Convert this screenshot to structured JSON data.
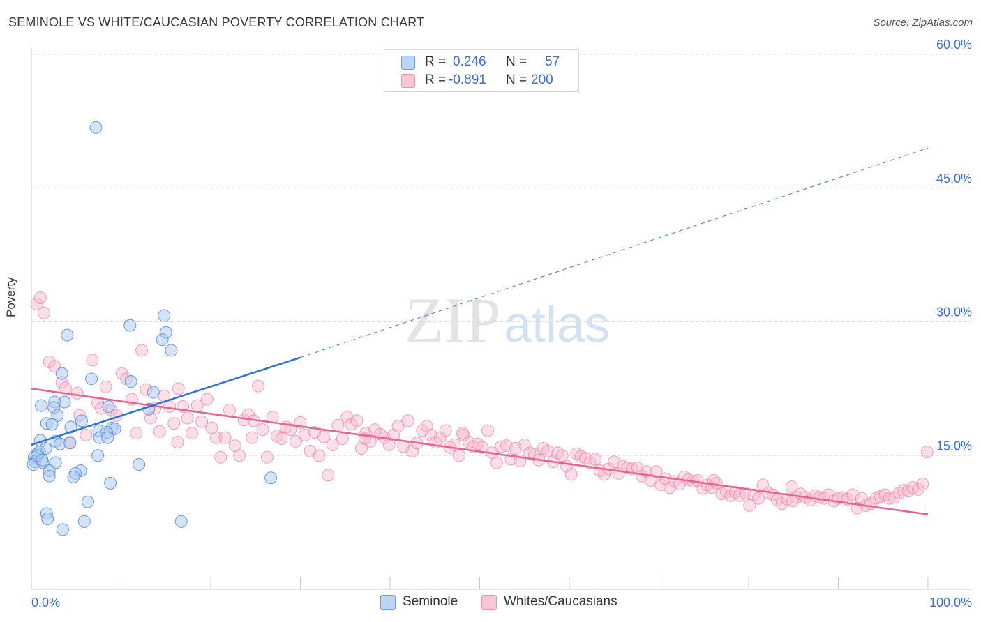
{
  "header": {
    "title": "SEMINOLE VS WHITE/CAUCASIAN POVERTY CORRELATION CHART",
    "source": "Source: ZipAtlas.com"
  },
  "watermark": {
    "zip": "ZIP",
    "atlas": "atlas"
  },
  "legend": {
    "rows": [
      {
        "r_label": "R =",
        "r_value": "0.246",
        "n_label": "N =",
        "n_value": "57"
      },
      {
        "r_label": "R =",
        "r_value": "-0.891",
        "n_label": "N =",
        "n_value": "200"
      }
    ]
  },
  "colors": {
    "seminole_fill": "#a9c8f0",
    "seminole_stroke": "#5b8fdc",
    "seminole_line": "#2c6fd6",
    "white_fill": "#f7b8cb",
    "white_stroke": "#ef8aa8",
    "white_line": "#e8628d",
    "tick_label": "#3a6fd0",
    "grid": "#d9d9d9"
  },
  "chart_data": {
    "type": "scatter",
    "title": "SEMINOLE VS WHITE/CAUCASIAN POVERTY CORRELATION CHART",
    "xlabel": "",
    "ylabel": "Poverty",
    "xlim": [
      0,
      100
    ],
    "ylim": [
      0,
      60
    ],
    "x_tick_labels": [
      "0.0%",
      "100.0%"
    ],
    "y_ticks": [
      15,
      30,
      45,
      60
    ],
    "y_tick_labels": [
      "15.0%",
      "30.0%",
      "45.0%",
      "60.0%"
    ],
    "grid": true,
    "legend_position": "top-center",
    "series": [
      {
        "name": "Seminole",
        "r": 0.246,
        "n": 57,
        "trend_solid": [
          [
            0,
            16.2
          ],
          [
            30,
            26.0
          ]
        ],
        "trend_dashed": [
          [
            30,
            26.0
          ],
          [
            100,
            49.5
          ]
        ],
        "points": [
          [
            7.2,
            51.8
          ],
          [
            4.0,
            28.5
          ],
          [
            11.0,
            29.6
          ],
          [
            14.8,
            30.7
          ],
          [
            15.0,
            28.8
          ],
          [
            14.6,
            28.0
          ],
          [
            15.6,
            26.8
          ],
          [
            3.4,
            24.2
          ],
          [
            6.7,
            23.6
          ],
          [
            11.1,
            23.3
          ],
          [
            13.6,
            22.1
          ],
          [
            3.7,
            21.0
          ],
          [
            2.6,
            21.0
          ],
          [
            1.1,
            20.6
          ],
          [
            2.5,
            20.4
          ],
          [
            8.6,
            20.5
          ],
          [
            13.1,
            20.2
          ],
          [
            2.9,
            19.5
          ],
          [
            5.6,
            18.9
          ],
          [
            1.7,
            18.6
          ],
          [
            2.3,
            18.5
          ],
          [
            4.4,
            18.2
          ],
          [
            9.0,
            18.1
          ],
          [
            9.3,
            18.0
          ],
          [
            7.5,
            17.8
          ],
          [
            8.4,
            17.6
          ],
          [
            7.6,
            17.0
          ],
          [
            8.5,
            17.0
          ],
          [
            1.0,
            16.7
          ],
          [
            2.7,
            16.6
          ],
          [
            3.2,
            16.3
          ],
          [
            4.3,
            16.4
          ],
          [
            1.6,
            15.8
          ],
          [
            0.9,
            15.4
          ],
          [
            0.7,
            15.2
          ],
          [
            0.3,
            14.8
          ],
          [
            7.4,
            15.0
          ],
          [
            0.4,
            14.3
          ],
          [
            0.2,
            14.0
          ],
          [
            1.3,
            14.2
          ],
          [
            2.7,
            14.2
          ],
          [
            12.0,
            14.0
          ],
          [
            2.0,
            13.3
          ],
          [
            5.5,
            13.3
          ],
          [
            4.9,
            13.0
          ],
          [
            2.0,
            12.7
          ],
          [
            4.7,
            12.6
          ],
          [
            26.7,
            12.5
          ],
          [
            8.8,
            11.9
          ],
          [
            6.3,
            9.8
          ],
          [
            1.7,
            8.5
          ],
          [
            1.8,
            7.9
          ],
          [
            5.9,
            7.6
          ],
          [
            16.7,
            7.6
          ],
          [
            3.5,
            6.7
          ],
          [
            0.6,
            15.0
          ],
          [
            1.2,
            14.5
          ]
        ]
      },
      {
        "name": "Whites/Caucasians",
        "r": -0.891,
        "n": 200,
        "trend": [
          [
            0,
            22.5
          ],
          [
            100,
            8.4
          ]
        ],
        "points": [
          [
            0.6,
            32.0
          ],
          [
            1.0,
            32.7
          ],
          [
            1.4,
            31.0
          ],
          [
            2.0,
            25.5
          ],
          [
            2.6,
            25.0
          ],
          [
            3.4,
            23.2
          ],
          [
            3.8,
            22.6
          ],
          [
            4.3,
            16.5
          ],
          [
            5.1,
            22.0
          ],
          [
            5.4,
            19.5
          ],
          [
            6.1,
            17.3
          ],
          [
            6.8,
            25.7
          ],
          [
            7.4,
            20.9
          ],
          [
            7.8,
            20.3
          ],
          [
            8.3,
            22.7
          ],
          [
            8.9,
            20.1
          ],
          [
            9.5,
            19.5
          ],
          [
            10.1,
            24.2
          ],
          [
            10.6,
            23.6
          ],
          [
            11.2,
            21.3
          ],
          [
            11.7,
            17.5
          ],
          [
            12.3,
            26.8
          ],
          [
            12.8,
            22.4
          ],
          [
            13.3,
            19.2
          ],
          [
            13.8,
            20.3
          ],
          [
            14.3,
            17.7
          ],
          [
            14.8,
            21.7
          ],
          [
            15.4,
            20.5
          ],
          [
            15.9,
            18.6
          ],
          [
            16.4,
            22.5
          ],
          [
            16.9,
            20.5
          ],
          [
            17.4,
            19.2
          ],
          [
            17.9,
            17.5
          ],
          [
            18.5,
            20.6
          ],
          [
            19.0,
            18.8
          ],
          [
            19.6,
            21.3
          ],
          [
            20.1,
            18.1
          ],
          [
            20.6,
            17.0
          ],
          [
            21.1,
            14.8
          ],
          [
            21.6,
            17.0
          ],
          [
            22.1,
            20.1
          ],
          [
            22.7,
            16.1
          ],
          [
            23.2,
            15.0
          ],
          [
            23.7,
            19.0
          ],
          [
            24.2,
            19.6
          ],
          [
            24.8,
            18.9
          ],
          [
            25.3,
            22.8
          ],
          [
            25.8,
            17.9
          ],
          [
            26.3,
            14.8
          ],
          [
            26.9,
            19.3
          ],
          [
            27.4,
            17.2
          ],
          [
            27.9,
            16.9
          ],
          [
            28.4,
            18.2
          ],
          [
            28.9,
            17.9
          ],
          [
            29.5,
            16.6
          ],
          [
            30.0,
            18.7
          ],
          [
            30.5,
            17.3
          ],
          [
            31.1,
            15.5
          ],
          [
            31.6,
            17.6
          ],
          [
            32.1,
            15.0
          ],
          [
            32.6,
            17.1
          ],
          [
            33.1,
            12.8
          ],
          [
            33.6,
            16.2
          ],
          [
            34.2,
            18.4
          ],
          [
            34.7,
            16.9
          ],
          [
            35.2,
            19.3
          ],
          [
            35.7,
            18.5
          ],
          [
            36.3,
            18.9
          ],
          [
            36.8,
            15.8
          ],
          [
            37.3,
            17.5
          ],
          [
            37.8,
            16.6
          ],
          [
            38.3,
            17.9
          ],
          [
            38.9,
            17.4
          ],
          [
            39.4,
            17.0
          ],
          [
            39.9,
            16.2
          ],
          [
            40.4,
            17.3
          ],
          [
            40.9,
            18.3
          ],
          [
            41.5,
            16.0
          ],
          [
            42.0,
            18.9
          ],
          [
            42.5,
            15.5
          ],
          [
            43.0,
            16.4
          ],
          [
            43.6,
            17.8
          ],
          [
            44.1,
            18.3
          ],
          [
            44.6,
            17.3
          ],
          [
            45.1,
            16.5
          ],
          [
            45.6,
            17.0
          ],
          [
            46.2,
            17.8
          ],
          [
            46.7,
            15.9
          ],
          [
            47.2,
            16.2
          ],
          [
            47.7,
            15.0
          ],
          [
            48.2,
            17.3
          ],
          [
            48.8,
            16.5
          ],
          [
            49.3,
            16.0
          ],
          [
            49.8,
            16.3
          ],
          [
            50.3,
            15.9
          ],
          [
            50.9,
            17.8
          ],
          [
            51.4,
            15.3
          ],
          [
            51.9,
            14.2
          ],
          [
            52.4,
            16.0
          ],
          [
            53.0,
            16.1
          ],
          [
            53.5,
            14.6
          ],
          [
            54.0,
            15.8
          ],
          [
            54.5,
            14.4
          ],
          [
            55.0,
            16.2
          ],
          [
            55.6,
            15.3
          ],
          [
            56.1,
            15.1
          ],
          [
            56.6,
            14.5
          ],
          [
            57.1,
            15.8
          ],
          [
            57.6,
            15.5
          ],
          [
            58.2,
            14.3
          ],
          [
            58.7,
            15.3
          ],
          [
            59.2,
            15.0
          ],
          [
            59.7,
            13.8
          ],
          [
            60.2,
            12.9
          ],
          [
            60.8,
            15.2
          ],
          [
            61.3,
            14.9
          ],
          [
            61.8,
            14.7
          ],
          [
            62.3,
            14.2
          ],
          [
            62.9,
            14.6
          ],
          [
            63.4,
            13.3
          ],
          [
            63.9,
            12.9
          ],
          [
            64.4,
            13.5
          ],
          [
            65.0,
            14.3
          ],
          [
            65.5,
            13.0
          ],
          [
            66.0,
            13.8
          ],
          [
            66.5,
            13.6
          ],
          [
            67.0,
            13.5
          ],
          [
            67.6,
            13.6
          ],
          [
            68.1,
            12.7
          ],
          [
            68.6,
            13.2
          ],
          [
            69.1,
            12.2
          ],
          [
            69.7,
            13.2
          ],
          [
            70.2,
            11.7
          ],
          [
            70.7,
            12.4
          ],
          [
            71.2,
            11.4
          ],
          [
            71.7,
            12.1
          ],
          [
            72.3,
            11.8
          ],
          [
            72.8,
            12.6
          ],
          [
            73.3,
            12.3
          ],
          [
            73.8,
            12.1
          ],
          [
            74.3,
            12.2
          ],
          [
            74.9,
            11.3
          ],
          [
            75.4,
            11.7
          ],
          [
            75.9,
            11.4
          ],
          [
            76.4,
            11.9
          ],
          [
            77.0,
            10.7
          ],
          [
            77.5,
            10.9
          ],
          [
            78.0,
            10.5
          ],
          [
            78.5,
            10.9
          ],
          [
            79.0,
            10.5
          ],
          [
            79.6,
            10.8
          ],
          [
            80.1,
            9.4
          ],
          [
            80.6,
            10.6
          ],
          [
            81.1,
            10.2
          ],
          [
            81.6,
            11.7
          ],
          [
            82.2,
            10.8
          ],
          [
            82.7,
            10.6
          ],
          [
            83.2,
            10.0
          ],
          [
            83.7,
            9.6
          ],
          [
            84.3,
            10.1
          ],
          [
            84.8,
            11.5
          ],
          [
            85.3,
            10.3
          ],
          [
            85.8,
            10.7
          ],
          [
            86.3,
            10.3
          ],
          [
            86.9,
            10.0
          ],
          [
            87.4,
            10.5
          ],
          [
            87.9,
            10.3
          ],
          [
            88.4,
            10.2
          ],
          [
            88.9,
            10.6
          ],
          [
            89.5,
            9.9
          ],
          [
            90.0,
            10.2
          ],
          [
            90.5,
            10.3
          ],
          [
            91.0,
            10.1
          ],
          [
            91.6,
            10.6
          ],
          [
            92.1,
            9.1
          ],
          [
            92.6,
            10.2
          ],
          [
            93.1,
            9.4
          ],
          [
            93.6,
            9.6
          ],
          [
            94.2,
            10.2
          ],
          [
            94.7,
            10.4
          ],
          [
            95.2,
            10.6
          ],
          [
            95.7,
            10.2
          ],
          [
            96.2,
            10.3
          ],
          [
            96.8,
            10.8
          ],
          [
            97.3,
            11.1
          ],
          [
            97.8,
            11.0
          ],
          [
            98.3,
            11.4
          ],
          [
            98.9,
            11.2
          ],
          [
            99.4,
            11.8
          ],
          [
            99.9,
            15.4
          ],
          [
            84.9,
            9.9
          ],
          [
            76.1,
            12.2
          ],
          [
            48.1,
            17.5
          ],
          [
            37.2,
            16.9
          ],
          [
            24.6,
            17.0
          ],
          [
            16.3,
            16.5
          ]
        ]
      }
    ]
  }
}
